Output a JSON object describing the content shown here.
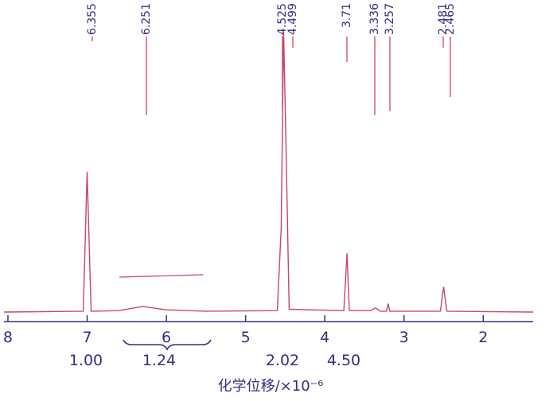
{
  "chart_data": {
    "type": "line",
    "x_label": "化学位移/×10⁻⁶",
    "xlim": [
      8.05,
      1.37
    ],
    "xticks": [
      8,
      7,
      6,
      5,
      4,
      3,
      2
    ],
    "ylim": [
      0,
      100
    ],
    "series": [
      {
        "name": "spectrum",
        "color": "#c9436e",
        "x": [
          8.05,
          7.05,
          7.0,
          6.95,
          6.6,
          6.3,
          6.0,
          5.5,
          4.6,
          4.55,
          4.52,
          4.49,
          4.45,
          3.76,
          3.72,
          3.69,
          3.42,
          3.36,
          3.3,
          3.22,
          3.2,
          3.18,
          2.54,
          2.5,
          2.46,
          1.37
        ],
        "values": [
          0,
          0.3,
          50,
          0.3,
          0.5,
          2,
          0.8,
          0.3,
          0.5,
          30,
          100,
          60,
          1,
          0.5,
          21,
          0.5,
          0.5,
          1.5,
          0.3,
          0.3,
          3,
          0.3,
          0.3,
          9,
          0.3,
          0
        ]
      }
    ],
    "peak_labels": [
      6.355,
      6.251,
      4.525,
      4.499,
      3.71,
      3.336,
      3.257,
      2.481,
      2.465
    ],
    "integrals": {
      "values": [
        1.0,
        1.24,
        2.02,
        4.5
      ],
      "value_labels": [
        "1.00",
        "1.24",
        "2.02",
        "4.50"
      ]
    }
  }
}
